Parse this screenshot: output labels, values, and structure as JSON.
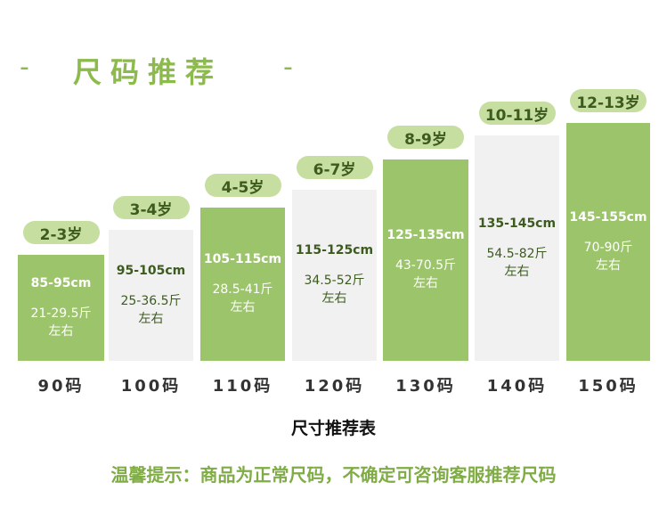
{
  "header": {
    "dash": "-",
    "title": "尺码推荐"
  },
  "sizes": [
    {
      "age": "2-3岁",
      "height": "85-95cm",
      "weight": "21-29.5斤",
      "approx": "左右",
      "size": "90码",
      "style": "green"
    },
    {
      "age": "3-4岁",
      "height": "95-105cm",
      "weight": "25-36.5斤",
      "approx": "左右",
      "size": "100码",
      "style": "light"
    },
    {
      "age": "4-5岁",
      "height": "105-115cm",
      "weight": "28.5-41斤",
      "approx": "左右",
      "size": "110码",
      "style": "green"
    },
    {
      "age": "6-7岁",
      "height": "115-125cm",
      "weight": "34.5-52斤",
      "approx": "左右",
      "size": "120码",
      "style": "light"
    },
    {
      "age": "8-9岁",
      "height": "125-135cm",
      "weight": "43-70.5斤",
      "approx": "左右",
      "size": "130码",
      "style": "green"
    },
    {
      "age": "10-11岁",
      "height": "135-145cm",
      "weight": "54.5-82斤",
      "approx": "左右",
      "size": "140码",
      "style": "light"
    },
    {
      "age": "12-13岁",
      "height": "145-155cm",
      "weight": "70-90斤",
      "approx": "左右",
      "size": "150码",
      "style": "green"
    }
  ],
  "caption": "尺寸推荐表",
  "tip": "温馨提示：商品为正常尺码，不确定可咨询客服推荐尺码",
  "colors": {
    "green": "#9cc46a",
    "pill": "#c6dea0",
    "text_dark": "#3d5a1f",
    "accent": "#8cbb4c"
  }
}
